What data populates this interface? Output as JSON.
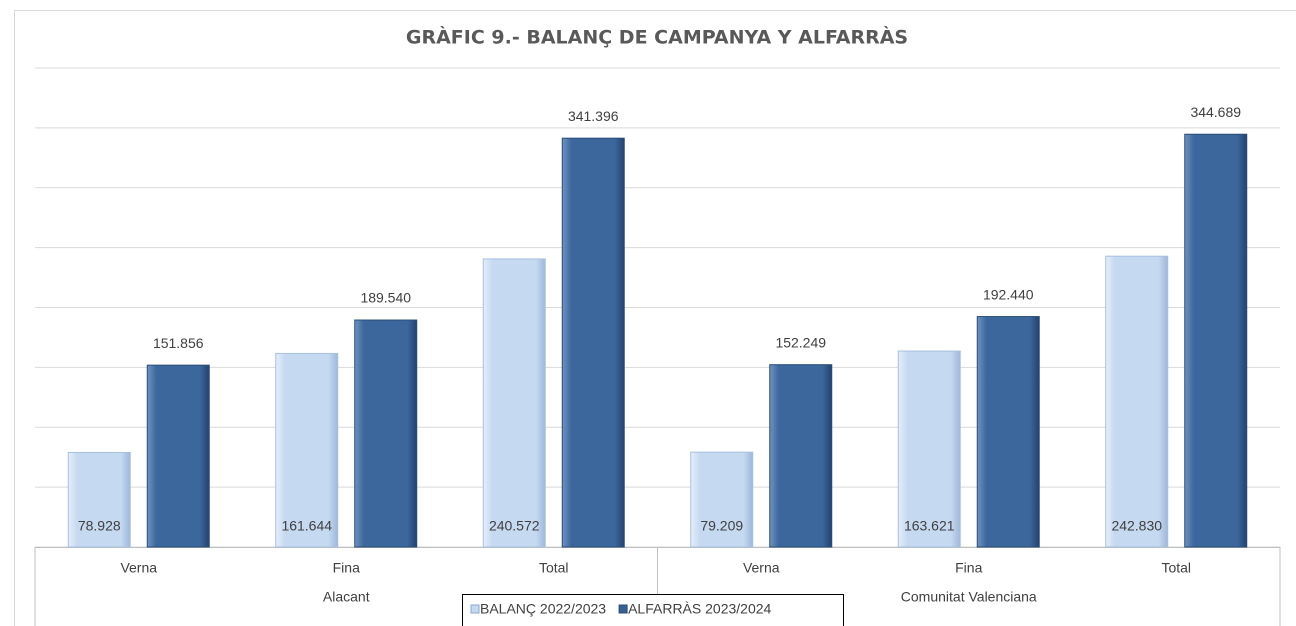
{
  "chart_data": {
    "type": "bar",
    "title": "GRÀFIC 9.- BALANÇ DE CAMPANYA Y ALFARRÀS",
    "groups": [
      {
        "label": "Alacant",
        "categories": [
          "Verna",
          "Fina",
          "Total"
        ]
      },
      {
        "label": "Comunitat Valenciana",
        "categories": [
          "Verna",
          "Fina",
          "Total"
        ]
      }
    ],
    "series": [
      {
        "name": "BALANÇ 2022/2023",
        "color": "#c5d9f1",
        "values": [
          78928,
          161644,
          240572,
          79209,
          163621,
          242830
        ],
        "value_labels": [
          "78.928",
          "161.644",
          "240.572",
          "79.209",
          "163.621",
          "242.830"
        ]
      },
      {
        "name": "ALFARRÀS 2023/2024",
        "color": "#366092",
        "values": [
          151856,
          189540,
          341396,
          152249,
          192440,
          344689
        ],
        "value_labels": [
          "151.856",
          "189.540",
          "341.396",
          "152.249",
          "192.440",
          "344.689"
        ]
      }
    ],
    "ylim": [
      0,
      400000
    ],
    "yticks": [
      0,
      50000,
      100000,
      150000,
      200000,
      250000,
      300000,
      350000,
      400000
    ],
    "grid": true
  }
}
